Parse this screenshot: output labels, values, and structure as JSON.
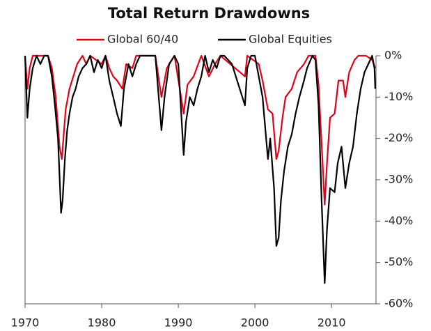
{
  "chart_data": {
    "type": "line",
    "title": "Total Return Drawdowns",
    "xlim": [
      1970,
      2015.8
    ],
    "xticks": [
      1970,
      1980,
      1990,
      2000,
      2010
    ],
    "ylim": [
      -60,
      0
    ],
    "yticks": [
      {
        "value": 0,
        "label": "0%"
      },
      {
        "value": -10,
        "label": "-10%"
      },
      {
        "value": -20,
        "label": "-20%"
      },
      {
        "value": -30,
        "label": "-30%"
      },
      {
        "value": -40,
        "label": "-40%"
      },
      {
        "value": -50,
        "label": "-50%"
      },
      {
        "value": -60,
        "label": "-60%"
      }
    ],
    "legend": "top",
    "series": [
      {
        "name": "Global 60/40",
        "color": "#e3001b",
        "x": [
          1970,
          1970.3,
          1970.6,
          1971,
          1972,
          1973,
          1973.5,
          1974,
          1974.5,
          1974.8,
          1975.3,
          1975.8,
          1976.3,
          1976.8,
          1977.5,
          1978,
          1978.5,
          1980,
          1980.5,
          1981,
          1981.5,
          1982,
          1982.7,
          1983.2,
          1984,
          1984.5,
          1987,
          1987.8,
          1988.5,
          1989.5,
          1990.7,
          1991.2,
          1992,
          1993,
          1994,
          1994.8,
          1995.5,
          1998.7,
          1999,
          2000.5,
          2001,
          2001.7,
          2002.3,
          2002.8,
          2003.1,
          2003.6,
          2004,
          2004.8,
          2005.5,
          2006.4,
          2007,
          2007.9,
          2008.3,
          2008.8,
          2009.1,
          2009.4,
          2009.8,
          2010.4,
          2010.9,
          2011.5,
          2011.8,
          2012.3,
          2013,
          2013.5,
          2014.5,
          2015.3,
          2015.7
        ],
        "values": [
          0,
          -8,
          -3,
          0,
          0,
          0,
          -3,
          -10,
          -22,
          -25,
          -13,
          -8,
          -5,
          -2,
          0,
          -2,
          0,
          -2,
          0,
          -3,
          -5,
          -6,
          -8,
          -2,
          -3,
          0,
          0,
          -10,
          -3,
          0,
          -14,
          -7,
          -5,
          0,
          -5,
          -2,
          0,
          -5,
          0,
          -2,
          -6,
          -13,
          -14,
          -25,
          -23,
          -15,
          -10,
          -8,
          -4,
          -2,
          0,
          0,
          -7,
          -25,
          -36,
          -26,
          -15,
          -14,
          -6,
          -6,
          -10,
          -4,
          -1,
          0,
          0,
          -1,
          -3
        ]
      },
      {
        "name": "Global Equities",
        "color": "#000000",
        "x": [
          1970,
          1970.3,
          1970.6,
          1971,
          1971.5,
          1972,
          1972.5,
          1973,
          1973.5,
          1973.9,
          1974.3,
          1974.7,
          1974.9,
          1975.2,
          1975.5,
          1975.8,
          1976.2,
          1976.6,
          1977,
          1977.5,
          1978,
          1978.5,
          1979,
          1979.5,
          1980,
          1980.5,
          1981,
          1981.5,
          1982,
          1982.5,
          1982.9,
          1983.5,
          1984,
          1984.5,
          1985,
          1986,
          1987,
          1987.8,
          1988.2,
          1988.8,
          1989.5,
          1990,
          1990.7,
          1991,
          1991.5,
          1992,
          1992.5,
          1993,
          1993.5,
          1994,
          1994.5,
          1995,
          1995.5,
          1996,
          1997,
          1998.7,
          1999,
          1999.5,
          2000,
          2000.5,
          2001,
          2001.7,
          2002,
          2002.5,
          2002.8,
          2003.1,
          2003.4,
          2003.8,
          2004.3,
          2004.8,
          2005.3,
          2005.8,
          2006.4,
          2006.8,
          2007.5,
          2007.9,
          2008.3,
          2008.7,
          2009.1,
          2009.4,
          2009.8,
          2010.4,
          2010.8,
          2011.3,
          2011.8,
          2012.3,
          2012.8,
          2013.3,
          2013.8,
          2014.3,
          2014.8,
          2015.3,
          2015.6,
          2015.7
        ],
        "values": [
          0,
          -15,
          -8,
          -3,
          0,
          -2,
          0,
          0,
          -5,
          -12,
          -20,
          -38,
          -35,
          -25,
          -18,
          -14,
          -10,
          -8,
          -5,
          -3,
          -2,
          0,
          -4,
          -1,
          -3,
          0,
          -6,
          -10,
          -14,
          -17,
          -8,
          -2,
          -5,
          -2,
          0,
          0,
          0,
          -18,
          -10,
          -2,
          0,
          -2,
          -24,
          -16,
          -10,
          -12,
          -8,
          -5,
          0,
          -4,
          -1,
          -3,
          0,
          0,
          -2,
          -12,
          -3,
          0,
          0,
          -5,
          -10,
          -25,
          -20,
          -32,
          -46,
          -44,
          -35,
          -28,
          -22,
          -19,
          -14,
          -10,
          -6,
          -3,
          0,
          -1,
          -12,
          -35,
          -55,
          -42,
          -32,
          -33,
          -26,
          -22,
          -32,
          -26,
          -22,
          -14,
          -8,
          -4,
          -2,
          0,
          -3,
          -8
        ]
      }
    ]
  }
}
